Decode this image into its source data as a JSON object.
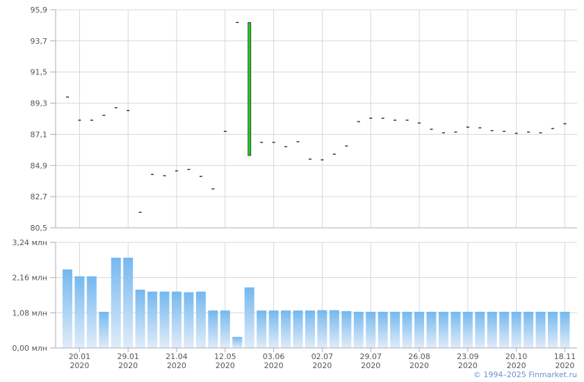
{
  "chart_data": [
    {
      "type": "candlestick",
      "panel": "price",
      "yticks": [
        "95,9",
        "93,7",
        "91,5",
        "89,3",
        "87,1",
        "84,9",
        "82,7",
        "80,5"
      ],
      "ylim": [
        80.5,
        95.9
      ],
      "grid": true,
      "open": [
        89.73,
        88.1,
        88.1,
        88.44,
        88.98,
        88.78,
        81.6,
        84.27,
        84.18,
        84.52,
        84.62,
        84.13,
        83.25,
        87.31,
        95.0,
        85.6,
        86.53,
        86.53,
        86.23,
        86.58,
        85.35,
        85.3,
        85.7,
        86.28,
        88.0,
        88.24,
        88.24,
        88.1,
        88.1,
        87.9,
        87.46,
        87.21,
        87.26,
        87.61,
        87.56,
        87.36,
        87.31,
        87.17,
        87.26,
        87.21,
        87.51,
        87.85
      ],
      "close": [
        89.73,
        88.1,
        88.1,
        88.44,
        88.98,
        88.78,
        81.6,
        84.27,
        84.18,
        84.52,
        84.62,
        84.13,
        83.25,
        87.31,
        95.0,
        95.0,
        86.53,
        86.53,
        86.23,
        86.58,
        85.35,
        85.3,
        85.7,
        86.28,
        88.0,
        88.24,
        88.24,
        88.1,
        88.1,
        87.9,
        87.46,
        87.21,
        87.26,
        87.61,
        87.56,
        87.36,
        87.31,
        87.17,
        87.26,
        87.21,
        87.51,
        87.85
      ],
      "colors": {
        "up": "#22cc22",
        "flat": "#000000"
      }
    },
    {
      "type": "bar",
      "panel": "volume",
      "yticks": [
        "3,24 млн",
        "2,16 млн",
        "1,08 млн",
        "0,00 млн"
      ],
      "ylim": [
        0,
        3.24
      ],
      "unit": "млн",
      "grid": true,
      "values": [
        2.41,
        2.2,
        2.2,
        1.11,
        2.77,
        2.77,
        1.79,
        1.73,
        1.73,
        1.73,
        1.71,
        1.73,
        1.15,
        1.15,
        0.34,
        1.86,
        1.15,
        1.15,
        1.15,
        1.15,
        1.15,
        1.16,
        1.16,
        1.13,
        1.11,
        1.11,
        1.11,
        1.11,
        1.11,
        1.11,
        1.11,
        1.11,
        1.11,
        1.11,
        1.11,
        1.11,
        1.11,
        1.11,
        1.11,
        1.11,
        1.11,
        1.11
      ],
      "colors": {
        "bar_top": "#74b8f0",
        "bar_bottom": "#e0ecf8"
      }
    }
  ],
  "xaxis": {
    "ticks": [
      {
        "bar": 1,
        "date": "20.01",
        "year": "2020"
      },
      {
        "bar": 5,
        "date": "29.01",
        "year": "2020"
      },
      {
        "bar": 9,
        "date": "21.04",
        "year": "2020"
      },
      {
        "bar": 13,
        "date": "12.05",
        "year": "2020"
      },
      {
        "bar": 17,
        "date": "03.06",
        "year": "2020"
      },
      {
        "bar": 21,
        "date": "02.07",
        "year": "2020"
      },
      {
        "bar": 25,
        "date": "29.07",
        "year": "2020"
      },
      {
        "bar": 29,
        "date": "26.08",
        "year": "2020"
      },
      {
        "bar": 33,
        "date": "23.09",
        "year": "2020"
      },
      {
        "bar": 37,
        "date": "20.10",
        "year": "2020"
      },
      {
        "bar": 41,
        "date": "18.11",
        "year": "2020"
      }
    ]
  },
  "copyright": "© 1994–2025 Finmarket.ru"
}
